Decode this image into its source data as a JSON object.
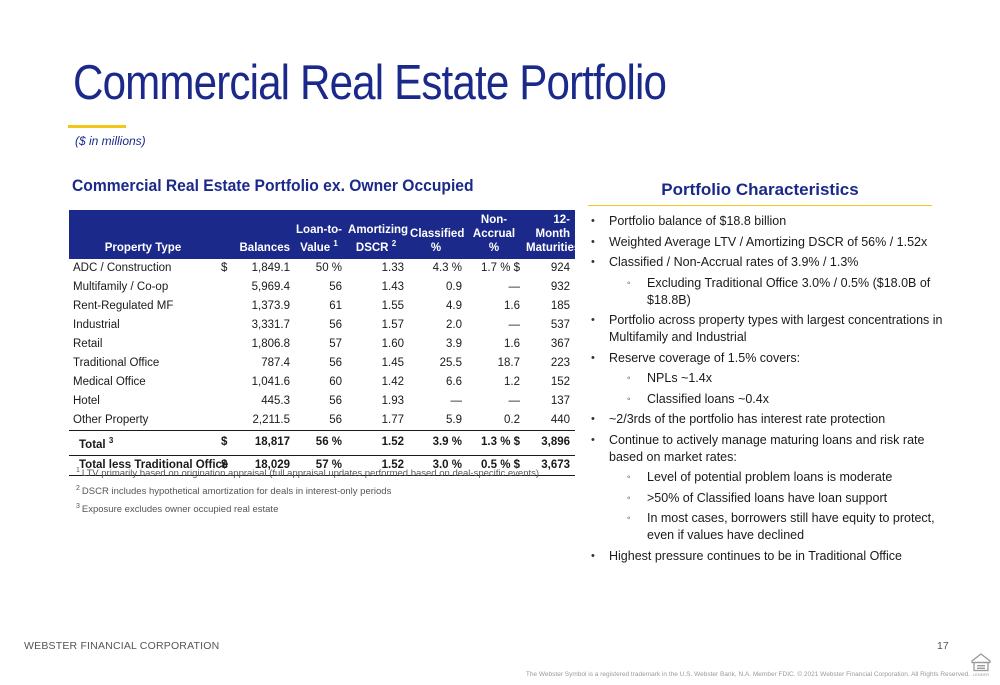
{
  "slide": {
    "title": "Commercial Real Estate Portfolio",
    "units_note": "($ in millions)"
  },
  "table": {
    "heading": "Commercial Real Estate Portfolio ex. Owner Occupied",
    "headers": {
      "property_type": "Property Type",
      "balances": "Balances",
      "ltv_line1": "Loan-to-",
      "ltv_line2": "Value",
      "ltv_note": "1",
      "dscr_line1": "Amortizing",
      "dscr_line2": "DSCR",
      "dscr_note": "2",
      "classified_line1": "Classified",
      "classified_line2": "%",
      "nonaccrual_line1": "Non-",
      "nonaccrual_line2": "Accrual %",
      "maturities_line1": "12-Month",
      "maturities_line2": "Maturities"
    },
    "rows": [
      {
        "name": "ADC / Construction",
        "dollar": "$",
        "balance": "1,849.1",
        "ltv": "50 %",
        "dscr": "1.33",
        "classified": "4.3 %",
        "nonaccrual": "1.7 % $",
        "maturities": "924"
      },
      {
        "name": "Multifamily / Co-op",
        "dollar": "",
        "balance": "5,969.4",
        "ltv": "56",
        "dscr": "1.43",
        "classified": "0.9",
        "nonaccrual": "—",
        "maturities": "932"
      },
      {
        "name": "Rent-Regulated MF",
        "dollar": "",
        "balance": "1,373.9",
        "ltv": "61",
        "dscr": "1.55",
        "classified": "4.9",
        "nonaccrual": "1.6",
        "maturities": "185"
      },
      {
        "name": "Industrial",
        "dollar": "",
        "balance": "3,331.7",
        "ltv": "56",
        "dscr": "1.57",
        "classified": "2.0",
        "nonaccrual": "—",
        "maturities": "537"
      },
      {
        "name": "Retail",
        "dollar": "",
        "balance": "1,806.8",
        "ltv": "57",
        "dscr": "1.60",
        "classified": "3.9",
        "nonaccrual": "1.6",
        "maturities": "367"
      },
      {
        "name": "Traditional Office",
        "dollar": "",
        "balance": "787.4",
        "ltv": "56",
        "dscr": "1.45",
        "classified": "25.5",
        "nonaccrual": "18.7",
        "maturities": "223"
      },
      {
        "name": "Medical Office",
        "dollar": "",
        "balance": "1,041.6",
        "ltv": "60",
        "dscr": "1.42",
        "classified": "6.6",
        "nonaccrual": "1.2",
        "maturities": "152"
      },
      {
        "name": "Hotel",
        "dollar": "",
        "balance": "445.3",
        "ltv": "56",
        "dscr": "1.93",
        "classified": "—",
        "nonaccrual": "—",
        "maturities": "137"
      },
      {
        "name": "Other Property",
        "dollar": "",
        "balance": "2,211.5",
        "ltv": "56",
        "dscr": "1.77",
        "classified": "5.9",
        "nonaccrual": "0.2",
        "maturities": "440"
      }
    ],
    "totals": [
      {
        "name": "Total",
        "note": "3",
        "dollar": "$",
        "balance": "18,817",
        "ltv": "56 %",
        "dscr": "1.52",
        "classified": "3.9 %",
        "nonaccrual": "1.3 % $",
        "maturities": "3,896"
      },
      {
        "name": "Total less Traditional Office",
        "note": "",
        "dollar": "$",
        "balance": "18,029",
        "ltv": "57 %",
        "dscr": "1.52",
        "classified": "3.0 %",
        "nonaccrual": "0.5 % $",
        "maturities": "3,673"
      }
    ],
    "footnotes": [
      {
        "num": "1",
        "text": "LTV primarily based on origination appraisal (full appraisal updates performed based on deal-specific events)"
      },
      {
        "num": "2",
        "text": "DSCR includes hypothetical amortization for deals in interest-only periods"
      },
      {
        "num": "3",
        "text": "Exposure excludes owner occupied real estate"
      }
    ]
  },
  "characteristics": {
    "heading": "Portfolio Characteristics",
    "bullets": [
      {
        "level": 1,
        "marker": "•",
        "text": "Portfolio balance of $18.8 billion"
      },
      {
        "level": 1,
        "marker": "•",
        "text": "Weighted Average LTV / Amortizing DSCR of 56% / 1.52x"
      },
      {
        "level": 1,
        "marker": "•",
        "text": "Classified / Non-Accrual rates of 3.9% / 1.3%"
      },
      {
        "level": 2,
        "marker": "◦",
        "text": "Excluding Traditional Office 3.0% / 0.5% ($18.0B of $18.8B)"
      },
      {
        "level": 1,
        "marker": "•",
        "text": "Portfolio across property types with largest concentrations in Multifamily and Industrial"
      },
      {
        "level": 1,
        "marker": "•",
        "text": "Reserve coverage of 1.5% covers:"
      },
      {
        "level": 2,
        "marker": "◦",
        "text": "NPLs ~1.4x"
      },
      {
        "level": 2,
        "marker": "◦",
        "text": "Classified loans ~0.4x"
      },
      {
        "level": 1,
        "marker": "•",
        "text": "~2/3rds of the portfolio has interest rate protection"
      },
      {
        "level": 1,
        "marker": "•",
        "text": "Continue to actively manage maturing loans and risk rate based on market rates:"
      },
      {
        "level": 2,
        "marker": "◦",
        "text": "Level of potential problem loans is moderate"
      },
      {
        "level": 2,
        "marker": "◦",
        "text": ">50% of Classified loans have loan support"
      },
      {
        "level": 2,
        "marker": "◦",
        "text": "In most cases, borrowers still have equity to protect, even if values have declined"
      },
      {
        "level": 1,
        "marker": "•",
        "text": "Highest pressure continues to be in Traditional Office"
      }
    ]
  },
  "footer": {
    "company": "WEBSTER FINANCIAL CORPORATION",
    "page": "17",
    "legal": "The Webster Symbol is a registered trademark in the U.S. Webster Bank, N.A. Member FDIC. © 2021 Webster Financial Corporation. All Rights Reserved.",
    "logo_icon": "equal-housing-lender-icon",
    "logo_text": "LENDER"
  },
  "colors": {
    "brand_blue": "#1b2a8a",
    "accent_yellow": "#f5c518"
  }
}
